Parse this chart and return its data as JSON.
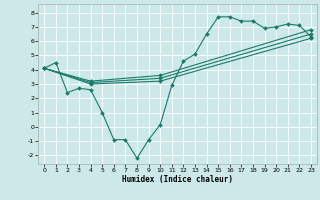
{
  "title": "",
  "xlabel": "Humidex (Indice chaleur)",
  "ylabel": "",
  "bg_color": "#cce8e8",
  "grid_color": "#ffffff",
  "line_color": "#1a7a6a",
  "xlim": [
    -0.5,
    23.5
  ],
  "ylim": [
    -2.6,
    8.6
  ],
  "xticks": [
    0,
    1,
    2,
    3,
    4,
    5,
    6,
    7,
    8,
    9,
    10,
    11,
    12,
    13,
    14,
    15,
    16,
    17,
    18,
    19,
    20,
    21,
    22,
    23
  ],
  "yticks": [
    -2,
    -1,
    0,
    1,
    2,
    3,
    4,
    5,
    6,
    7,
    8
  ],
  "lines": [
    {
      "x": [
        0,
        1,
        2,
        3,
        4,
        5,
        6,
        7,
        8,
        9,
        10,
        11,
        12,
        13,
        14,
        15,
        16,
        17,
        18,
        19,
        20,
        21,
        22,
        23
      ],
      "y": [
        4.1,
        4.5,
        2.4,
        2.7,
        2.6,
        1.0,
        -0.9,
        -0.9,
        -2.2,
        -0.9,
        0.15,
        2.9,
        4.6,
        5.1,
        6.5,
        7.7,
        7.7,
        7.4,
        7.4,
        6.9,
        7.0,
        7.2,
        7.1,
        6.3
      ]
    },
    {
      "x": [
        0,
        4,
        10,
        23
      ],
      "y": [
        4.1,
        3.0,
        3.2,
        6.2
      ]
    },
    {
      "x": [
        0,
        4,
        10,
        23
      ],
      "y": [
        4.1,
        3.1,
        3.4,
        6.5
      ]
    },
    {
      "x": [
        0,
        4,
        10,
        23
      ],
      "y": [
        4.1,
        3.2,
        3.6,
        6.8
      ]
    }
  ]
}
